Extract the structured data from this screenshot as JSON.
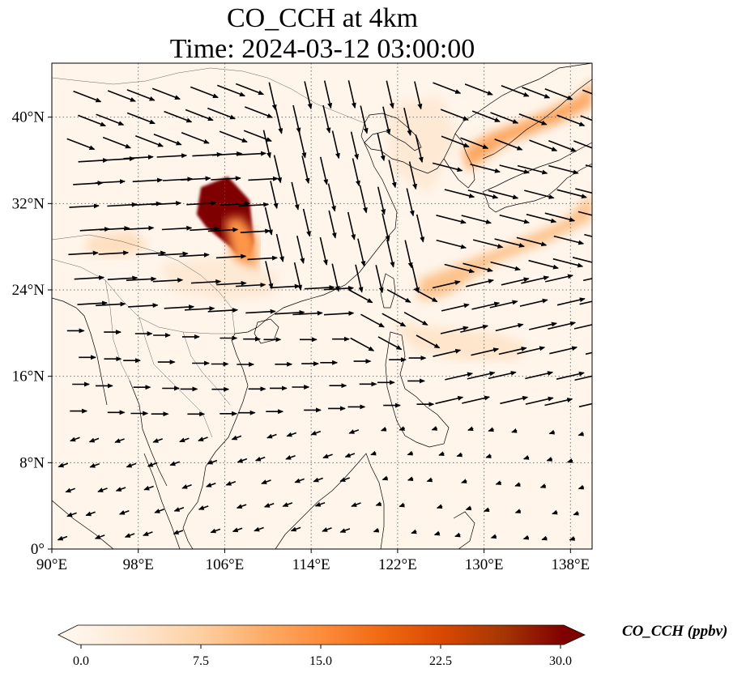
{
  "title_line1": "CO_CCH at 4km",
  "title_line2": "Time: 2024-03-12 03:00:00",
  "map": {
    "lon_range": [
      90,
      140
    ],
    "lat_range": [
      0,
      45
    ],
    "lon_ticks": [
      90,
      98,
      106,
      114,
      122,
      130,
      138
    ],
    "lon_labels": [
      "90°E",
      "98°E",
      "106°E",
      "114°E",
      "122°E",
      "130°E",
      "138°E"
    ],
    "lat_ticks": [
      0,
      8,
      16,
      24,
      32,
      40
    ],
    "lat_labels": [
      "0°",
      "8°N",
      "16°N",
      "24°N",
      "32°N",
      "40°N"
    ],
    "gridlines": true,
    "field_color_low": "#fff5eb",
    "field_color_high": "#7f0000",
    "plumes": [
      {
        "lon": [
          103.8,
          106.3,
          108.3,
          108.7,
          108.0,
          106.5,
          104.3,
          103.4
        ],
        "lat": [
          33.5,
          34.5,
          32.3,
          28.4,
          26.3,
          28.0,
          29.8,
          31.0
        ],
        "value": 30
      },
      {
        "lon": [
          106.0,
          107.5,
          109.0,
          109.0,
          108.0,
          106.8
        ],
        "lat": [
          30.5,
          30.8,
          28.8,
          25.2,
          24.3,
          26.5
        ],
        "value": 14
      },
      {
        "lon": [
          128.0,
          130.5,
          134.5,
          138.8,
          140.0,
          140.0,
          137.0,
          132.0,
          128.5
        ],
        "lat": [
          37.0,
          38.5,
          40.0,
          42.0,
          43.5,
          41.0,
          39.5,
          37.5,
          35.0
        ],
        "value": 12
      },
      {
        "lon": [
          124.0,
          128.0,
          133.0,
          137.5,
          140.0,
          140.0,
          136.0,
          131.0,
          126.5,
          124.0
        ],
        "lat": [
          25.0,
          26.5,
          28.5,
          30.5,
          33.0,
          30.5,
          28.5,
          26.5,
          23.5,
          23.0
        ],
        "value": 9
      },
      {
        "lon": [
          121.5,
          126.0,
          131.0,
          134.0,
          133.0,
          128.0,
          123.5
        ],
        "lat": [
          21.0,
          20.5,
          20.0,
          19.0,
          17.5,
          17.5,
          18.5
        ],
        "value": 4
      },
      {
        "lon": [
          93.5,
          97.5,
          99.0,
          96.5,
          93.0
        ],
        "lat": [
          29.0,
          29.5,
          28.0,
          27.0,
          27.5
        ],
        "value": 5
      },
      {
        "lon": [
          100.0,
          106.0,
          111.0,
          110.5,
          106.0,
          101.0
        ],
        "lat": [
          26.5,
          27.0,
          25.5,
          23.5,
          23.0,
          24.0
        ],
        "value": 3
      },
      {
        "lon": [
          121.0,
          126.0,
          127.5,
          125.0,
          121.5
        ],
        "lat": [
          41.0,
          42.0,
          38.0,
          33.0,
          35.0
        ],
        "value": 3
      }
    ]
  },
  "colorbar": {
    "label": "CO_CCH (ppbv)",
    "min": 0,
    "max": 30,
    "ticks": [
      0,
      7.5,
      15,
      22.5,
      30
    ],
    "tick_labels": [
      "0.0",
      "7.5",
      "15.0",
      "22.5",
      "30.0"
    ],
    "colors": [
      "#fff5eb",
      "#fee6ce",
      "#fdd0a2",
      "#fdae6b",
      "#fd8d3c",
      "#f16913",
      "#d94801",
      "#a63603",
      "#7f0000"
    ],
    "extend": "both"
  }
}
